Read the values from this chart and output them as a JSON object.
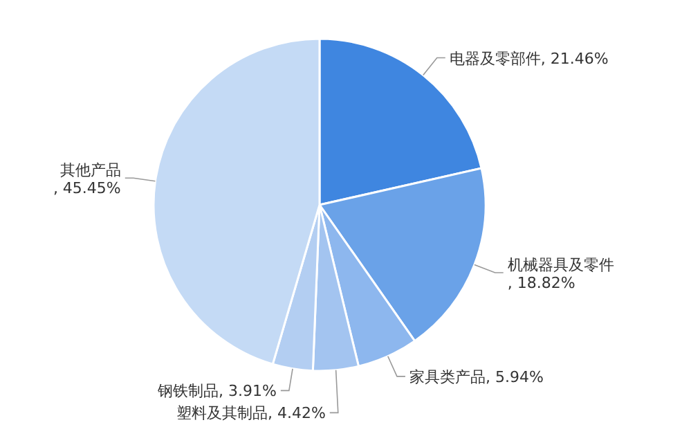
{
  "chart_data": {
    "type": "pie",
    "categories": [
      "电器及零部件",
      "机械器具及零件",
      "家具类产品",
      "塑料及其制品",
      "钢铁制品",
      "其他产品"
    ],
    "values": [
      21.46,
      18.82,
      5.94,
      4.42,
      3.91,
      45.45
    ],
    "value_labels": [
      ", 21.46%",
      ", 18.82%",
      ", 5.94%",
      ", 4.42%",
      ", 3.91%",
      ", 45.45%"
    ],
    "colors": [
      "#3f86e0",
      "#6aa2e8",
      "#8db7ee",
      "#a3c4f0",
      "#b3cef2",
      "#c4daf5"
    ]
  }
}
